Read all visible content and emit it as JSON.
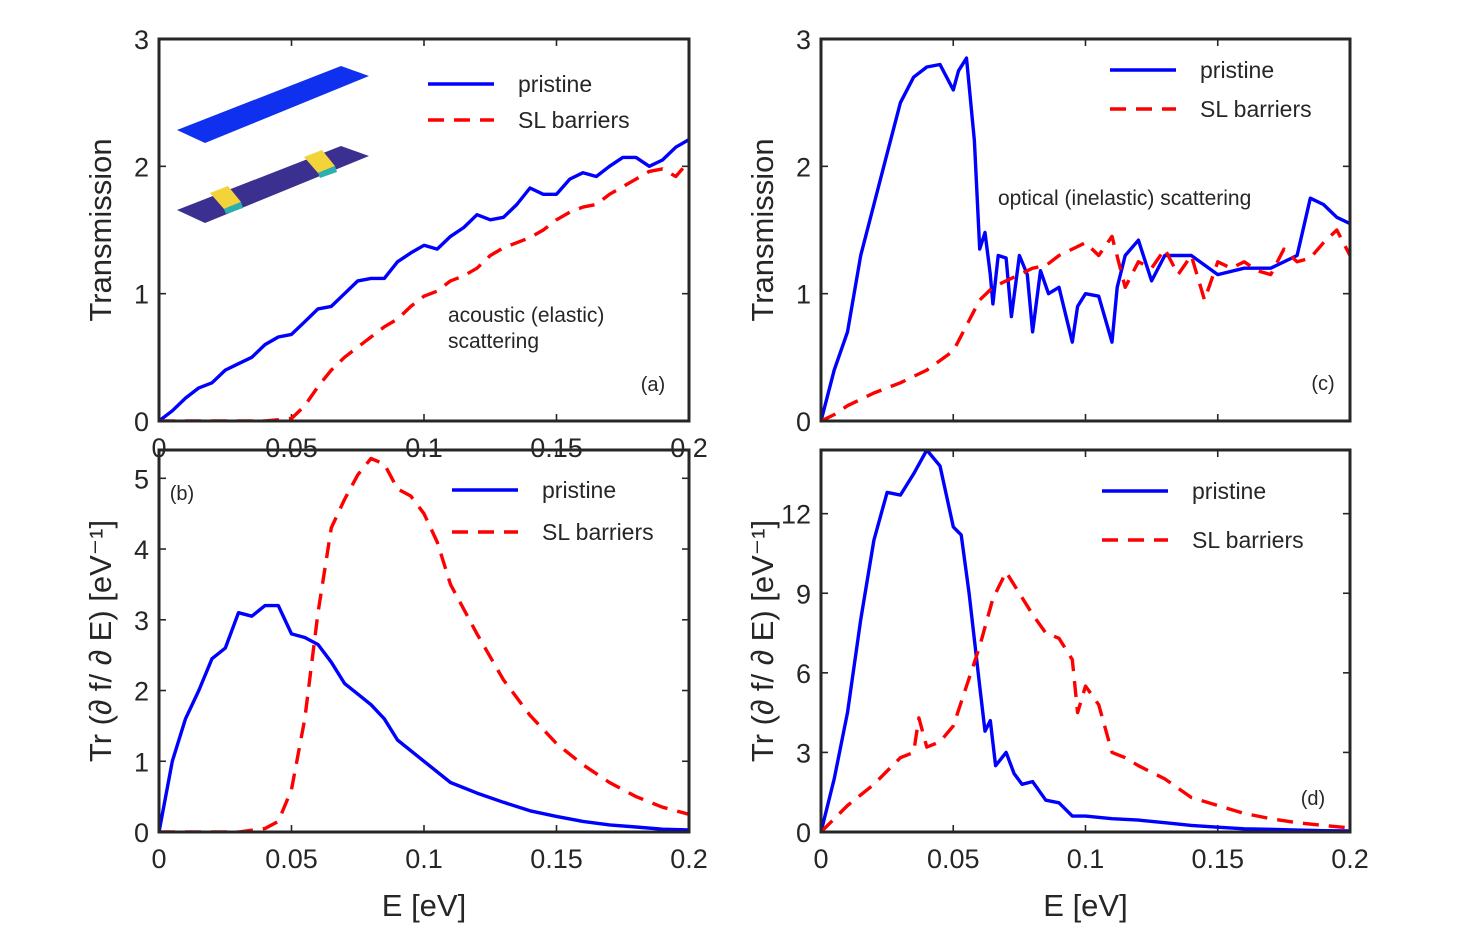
{
  "colors": {
    "pristine": "#0000ff",
    "barriers": "#ff0000"
  },
  "legend": {
    "pristine": "pristine",
    "barriers": "SL barriers"
  },
  "labels": {
    "xlabel": "E [eV]",
    "ylabel_transmission": "Transmission",
    "ylabel_tr": "Tr (∂ f/ ∂ E) [eV⁻¹]"
  },
  "chart_data": [
    {
      "id": "a",
      "type": "line",
      "panel_label": "(a)",
      "annotation": [
        "acoustic (elastic)",
        "scattering"
      ],
      "ylabel": "Transmission",
      "xlim": [
        0,
        0.2
      ],
      "ylim": [
        0,
        3
      ],
      "xticks": [
        "0",
        "0.05",
        "0.1",
        "0.15",
        "0.2"
      ],
      "yticks": [
        "0",
        "1",
        "2",
        "3"
      ],
      "inset": "device-schematic",
      "series": [
        {
          "name": "pristine",
          "style": "solid",
          "x": [
            0,
            0.005,
            0.01,
            0.015,
            0.02,
            0.025,
            0.03,
            0.035,
            0.04,
            0.045,
            0.05,
            0.055,
            0.06,
            0.065,
            0.07,
            0.075,
            0.08,
            0.085,
            0.09,
            0.095,
            0.1,
            0.105,
            0.11,
            0.115,
            0.12,
            0.125,
            0.13,
            0.135,
            0.14,
            0.145,
            0.15,
            0.155,
            0.16,
            0.165,
            0.17,
            0.175,
            0.18,
            0.185,
            0.19,
            0.195,
            0.2
          ],
          "y": [
            0,
            0.08,
            0.18,
            0.26,
            0.3,
            0.4,
            0.45,
            0.5,
            0.6,
            0.66,
            0.68,
            0.78,
            0.88,
            0.9,
            1.0,
            1.1,
            1.12,
            1.12,
            1.25,
            1.32,
            1.38,
            1.35,
            1.45,
            1.52,
            1.62,
            1.58,
            1.6,
            1.7,
            1.83,
            1.78,
            1.78,
            1.9,
            1.95,
            1.92,
            2.0,
            2.07,
            2.07,
            2.0,
            2.05,
            2.15,
            2.21
          ]
        },
        {
          "name": "SL barriers",
          "style": "dashed",
          "x": [
            0,
            0.02,
            0.04,
            0.05,
            0.055,
            0.06,
            0.065,
            0.07,
            0.075,
            0.08,
            0.085,
            0.09,
            0.095,
            0.1,
            0.105,
            0.11,
            0.115,
            0.12,
            0.125,
            0.13,
            0.135,
            0.14,
            0.145,
            0.15,
            0.155,
            0.16,
            0.165,
            0.17,
            0.175,
            0.18,
            0.185,
            0.19,
            0.195,
            0.2
          ],
          "y": [
            0,
            0,
            0,
            0.02,
            0.12,
            0.27,
            0.4,
            0.5,
            0.58,
            0.66,
            0.74,
            0.8,
            0.9,
            0.98,
            1.02,
            1.1,
            1.14,
            1.2,
            1.3,
            1.36,
            1.4,
            1.44,
            1.5,
            1.58,
            1.64,
            1.68,
            1.7,
            1.78,
            1.84,
            1.9,
            1.96,
            1.98,
            1.92,
            2.04
          ]
        }
      ]
    },
    {
      "id": "b",
      "type": "line",
      "panel_label": "(b)",
      "ylabel": "Tr (∂ f/ ∂ E) [eV⁻¹]",
      "xlabel": "E [eV]",
      "xlim": [
        0,
        0.2
      ],
      "ylim": [
        0,
        5.4
      ],
      "xticks": [
        "0",
        "0.05",
        "0.1",
        "0.15",
        "0.2"
      ],
      "yticks": [
        "0",
        "1",
        "2",
        "3",
        "4",
        "5"
      ],
      "series": [
        {
          "name": "pristine",
          "style": "solid",
          "x": [
            0,
            0.005,
            0.01,
            0.015,
            0.02,
            0.025,
            0.03,
            0.035,
            0.04,
            0.045,
            0.05,
            0.055,
            0.06,
            0.065,
            0.07,
            0.075,
            0.08,
            0.085,
            0.09,
            0.1,
            0.11,
            0.12,
            0.13,
            0.14,
            0.15,
            0.16,
            0.17,
            0.18,
            0.19,
            0.2
          ],
          "y": [
            0,
            1.0,
            1.6,
            2.0,
            2.45,
            2.6,
            3.1,
            3.05,
            3.2,
            3.2,
            2.8,
            2.75,
            2.65,
            2.4,
            2.1,
            1.95,
            1.8,
            1.6,
            1.3,
            1.0,
            0.7,
            0.55,
            0.42,
            0.3,
            0.22,
            0.15,
            0.1,
            0.07,
            0.04,
            0.03
          ]
        },
        {
          "name": "SL barriers",
          "style": "dashed",
          "x": [
            0,
            0.03,
            0.04,
            0.045,
            0.05,
            0.055,
            0.06,
            0.065,
            0.07,
            0.075,
            0.08,
            0.085,
            0.09,
            0.095,
            0.1,
            0.105,
            0.11,
            0.12,
            0.13,
            0.14,
            0.15,
            0.16,
            0.17,
            0.18,
            0.19,
            0.2
          ],
          "y": [
            0,
            0,
            0.05,
            0.15,
            0.6,
            1.6,
            3.1,
            4.3,
            4.7,
            5.05,
            5.28,
            5.2,
            4.85,
            4.75,
            4.5,
            4.1,
            3.5,
            2.8,
            2.15,
            1.65,
            1.25,
            0.95,
            0.7,
            0.5,
            0.35,
            0.25
          ]
        }
      ]
    },
    {
      "id": "c",
      "type": "line",
      "panel_label": "(c)",
      "annotation": [
        "optical (inelastic) scattering"
      ],
      "ylabel": "Transmission",
      "xlim": [
        0,
        0.2
      ],
      "ylim": [
        0,
        3
      ],
      "yticks": [
        "0",
        "1",
        "2",
        "3"
      ],
      "xticks": [],
      "series": [
        {
          "name": "pristine",
          "style": "solid",
          "x": [
            0,
            0.005,
            0.01,
            0.015,
            0.02,
            0.025,
            0.03,
            0.035,
            0.04,
            0.045,
            0.05,
            0.052,
            0.055,
            0.058,
            0.06,
            0.062,
            0.064,
            0.065,
            0.067,
            0.07,
            0.072,
            0.075,
            0.078,
            0.08,
            0.083,
            0.086,
            0.09,
            0.095,
            0.097,
            0.1,
            0.105,
            0.11,
            0.112,
            0.115,
            0.12,
            0.125,
            0.13,
            0.14,
            0.15,
            0.16,
            0.17,
            0.18,
            0.185,
            0.19,
            0.195,
            0.2
          ],
          "y": [
            0,
            0.4,
            0.7,
            1.3,
            1.7,
            2.1,
            2.5,
            2.7,
            2.78,
            2.8,
            2.6,
            2.75,
            2.85,
            2.2,
            1.35,
            1.48,
            1.15,
            0.92,
            1.3,
            1.28,
            0.82,
            1.3,
            1.15,
            0.7,
            1.18,
            1.0,
            1.05,
            0.62,
            0.9,
            1.0,
            0.98,
            0.62,
            1.05,
            1.3,
            1.42,
            1.1,
            1.3,
            1.3,
            1.15,
            1.2,
            1.2,
            1.3,
            1.75,
            1.7,
            1.6,
            1.55
          ]
        },
        {
          "name": "SL barriers",
          "style": "dashed",
          "x": [
            0,
            0.005,
            0.01,
            0.02,
            0.03,
            0.04,
            0.05,
            0.055,
            0.06,
            0.065,
            0.07,
            0.075,
            0.08,
            0.085,
            0.09,
            0.095,
            0.1,
            0.105,
            0.11,
            0.115,
            0.12,
            0.125,
            0.13,
            0.135,
            0.14,
            0.145,
            0.15,
            0.155,
            0.16,
            0.165,
            0.17,
            0.175,
            0.18,
            0.185,
            0.19,
            0.195,
            0.2
          ],
          "y": [
            0,
            0.05,
            0.12,
            0.22,
            0.3,
            0.4,
            0.55,
            0.75,
            0.95,
            1.05,
            1.1,
            1.15,
            1.2,
            1.22,
            1.3,
            1.35,
            1.4,
            1.3,
            1.45,
            1.05,
            1.25,
            1.2,
            1.35,
            1.15,
            1.3,
            0.95,
            1.25,
            1.2,
            1.25,
            1.18,
            1.15,
            1.35,
            1.25,
            1.28,
            1.4,
            1.5,
            1.3
          ]
        }
      ]
    },
    {
      "id": "d",
      "type": "line",
      "panel_label": "(d)",
      "ylabel": "Tr (∂ f/ ∂ E) [eV⁻¹]",
      "xlabel": "E [eV]",
      "xlim": [
        0,
        0.2
      ],
      "ylim": [
        0,
        14.4
      ],
      "xticks": [
        "0",
        "0.05",
        "0.1",
        "0.15",
        "0.2"
      ],
      "yticks": [
        "0",
        "3",
        "6",
        "9",
        "12"
      ],
      "series": [
        {
          "name": "pristine",
          "style": "solid",
          "x": [
            0,
            0.005,
            0.01,
            0.015,
            0.02,
            0.025,
            0.03,
            0.035,
            0.04,
            0.045,
            0.05,
            0.053,
            0.056,
            0.06,
            0.062,
            0.064,
            0.066,
            0.07,
            0.073,
            0.076,
            0.08,
            0.085,
            0.09,
            0.095,
            0.1,
            0.11,
            0.12,
            0.13,
            0.14,
            0.15,
            0.16,
            0.17,
            0.18,
            0.19,
            0.2
          ],
          "y": [
            0,
            2.0,
            4.5,
            8.0,
            11.0,
            12.8,
            12.7,
            13.5,
            14.4,
            13.8,
            11.5,
            11.2,
            9.0,
            5.5,
            3.8,
            4.2,
            2.5,
            3.0,
            2.2,
            1.8,
            1.9,
            1.2,
            1.1,
            0.6,
            0.6,
            0.5,
            0.45,
            0.35,
            0.25,
            0.18,
            0.12,
            0.1,
            0.07,
            0.05,
            0.04
          ]
        },
        {
          "name": "SL barriers",
          "style": "dashed",
          "x": [
            0,
            0.01,
            0.02,
            0.03,
            0.035,
            0.037,
            0.04,
            0.045,
            0.05,
            0.055,
            0.06,
            0.065,
            0.07,
            0.075,
            0.08,
            0.085,
            0.09,
            0.095,
            0.097,
            0.1,
            0.105,
            0.11,
            0.115,
            0.12,
            0.13,
            0.14,
            0.15,
            0.16,
            0.17,
            0.18,
            0.19,
            0.2
          ],
          "y": [
            0,
            1.0,
            1.8,
            2.8,
            3.0,
            4.3,
            3.2,
            3.4,
            4.0,
            5.5,
            7.0,
            8.8,
            9.8,
            9.0,
            8.2,
            7.5,
            7.3,
            6.5,
            4.5,
            5.5,
            4.8,
            3.0,
            2.8,
            2.5,
            2.0,
            1.3,
            1.0,
            0.7,
            0.5,
            0.35,
            0.25,
            0.15
          ]
        }
      ]
    }
  ]
}
